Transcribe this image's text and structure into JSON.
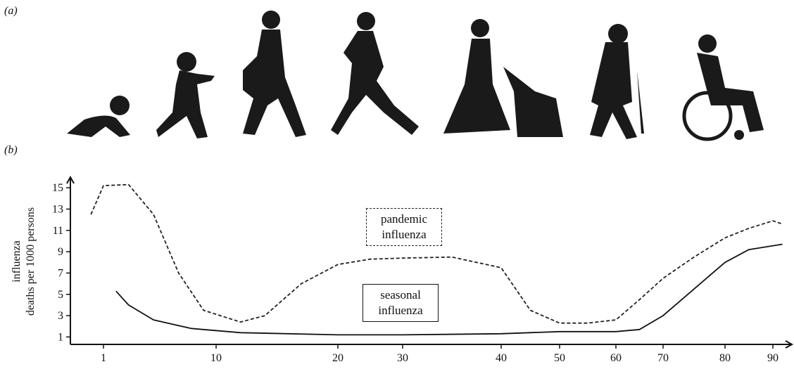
{
  "panel_a_label": "(a)",
  "chart_data": {
    "type": "line",
    "panel_label": "(b)",
    "ylabel_lines": [
      "influenza",
      "deaths per 1000 persons"
    ],
    "xlim": [
      0,
      93
    ],
    "ylim": [
      0.3,
      16
    ],
    "xticks": [
      1,
      10,
      20,
      30,
      40,
      50,
      60,
      70,
      80,
      90
    ],
    "yticks": [
      1,
      3,
      5,
      7,
      9,
      11,
      13,
      15
    ],
    "series": [
      {
        "name": "pandemic influenza",
        "color": "#222222",
        "dash": true,
        "x": [
          0,
          1,
          3,
          5,
          7,
          9,
          12,
          14,
          17,
          20,
          25,
          30,
          35,
          40,
          45,
          50,
          55,
          60,
          65,
          70,
          75,
          80,
          85,
          90,
          92
        ],
        "values": [
          12.5,
          15.2,
          15.3,
          12.5,
          7,
          3.5,
          2.4,
          3,
          6,
          7.8,
          8.3,
          8.4,
          8.5,
          7.5,
          3.5,
          2.3,
          2.3,
          2.6,
          4.5,
          6.5,
          8.5,
          10.3,
          11.2,
          11.9,
          11.6
        ]
      },
      {
        "name": "seasonal influenza",
        "color": "#111111",
        "dash": false,
        "x": [
          2,
          3,
          5,
          8,
          12,
          20,
          30,
          40,
          50,
          60,
          65,
          70,
          75,
          80,
          85,
          92
        ],
        "values": [
          5.3,
          4,
          2.6,
          1.8,
          1.4,
          1.2,
          1.2,
          1.3,
          1.5,
          1.5,
          1.7,
          3,
          5.5,
          8,
          9.2,
          9.7
        ]
      }
    ]
  }
}
